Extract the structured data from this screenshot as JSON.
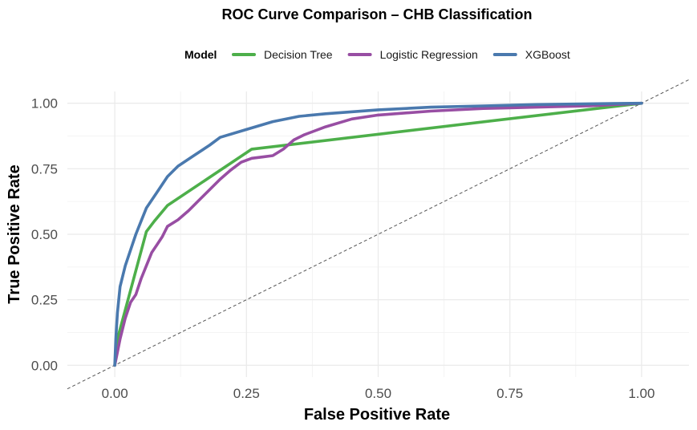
{
  "chart_data": {
    "type": "line",
    "title": "ROC Curve Comparison – CHB Classification",
    "xlabel": "False Positive Rate",
    "ylabel": "True Positive Rate",
    "xlim": [
      -0.09,
      1.09
    ],
    "ylim": [
      -0.045,
      1.045
    ],
    "x_ticks": [
      "0.00",
      "0.25",
      "0.50",
      "0.75",
      "1.00"
    ],
    "y_ticks": [
      "0.00",
      "0.25",
      "0.50",
      "0.75",
      "1.00"
    ],
    "grid": true,
    "legend": {
      "title": "Model",
      "placement": "top"
    },
    "reference_line": {
      "style": "dashed",
      "from": [
        0,
        0
      ],
      "to": [
        1,
        1
      ]
    },
    "series": [
      {
        "name": "Decision Tree",
        "color": "#4DAF4A",
        "points": [
          [
            0,
            0
          ],
          [
            0.005,
            0.1
          ],
          [
            0.06,
            0.51
          ],
          [
            0.075,
            0.55
          ],
          [
            0.1,
            0.61
          ],
          [
            0.26,
            0.825
          ],
          [
            1,
            1
          ]
        ]
      },
      {
        "name": "Logistic Regression",
        "color": "#984EA3",
        "points": [
          [
            0,
            0
          ],
          [
            0.005,
            0.05
          ],
          [
            0.01,
            0.1
          ],
          [
            0.02,
            0.18
          ],
          [
            0.03,
            0.24
          ],
          [
            0.04,
            0.27
          ],
          [
            0.05,
            0.33
          ],
          [
            0.06,
            0.38
          ],
          [
            0.07,
            0.43
          ],
          [
            0.08,
            0.46
          ],
          [
            0.09,
            0.49
          ],
          [
            0.1,
            0.53
          ],
          [
            0.12,
            0.555
          ],
          [
            0.14,
            0.59
          ],
          [
            0.16,
            0.63
          ],
          [
            0.18,
            0.67
          ],
          [
            0.2,
            0.71
          ],
          [
            0.22,
            0.745
          ],
          [
            0.24,
            0.775
          ],
          [
            0.26,
            0.79
          ],
          [
            0.28,
            0.795
          ],
          [
            0.3,
            0.8
          ],
          [
            0.32,
            0.825
          ],
          [
            0.34,
            0.86
          ],
          [
            0.36,
            0.88
          ],
          [
            0.38,
            0.895
          ],
          [
            0.4,
            0.91
          ],
          [
            0.45,
            0.94
          ],
          [
            0.5,
            0.955
          ],
          [
            0.6,
            0.97
          ],
          [
            0.7,
            0.98
          ],
          [
            0.8,
            0.985
          ],
          [
            0.9,
            0.99
          ],
          [
            1,
            1
          ]
        ]
      },
      {
        "name": "XGBoost",
        "color": "#4A79AE",
        "points": [
          [
            0,
            0
          ],
          [
            0.002,
            0.1
          ],
          [
            0.005,
            0.2
          ],
          [
            0.01,
            0.3
          ],
          [
            0.02,
            0.38
          ],
          [
            0.03,
            0.44
          ],
          [
            0.04,
            0.5
          ],
          [
            0.05,
            0.55
          ],
          [
            0.06,
            0.6
          ],
          [
            0.08,
            0.66
          ],
          [
            0.1,
            0.72
          ],
          [
            0.12,
            0.76
          ],
          [
            0.15,
            0.8
          ],
          [
            0.18,
            0.84
          ],
          [
            0.2,
            0.87
          ],
          [
            0.25,
            0.9
          ],
          [
            0.3,
            0.93
          ],
          [
            0.35,
            0.95
          ],
          [
            0.4,
            0.96
          ],
          [
            0.5,
            0.975
          ],
          [
            0.6,
            0.985
          ],
          [
            0.7,
            0.99
          ],
          [
            0.8,
            0.995
          ],
          [
            0.9,
            0.998
          ],
          [
            1,
            1
          ]
        ]
      }
    ]
  }
}
